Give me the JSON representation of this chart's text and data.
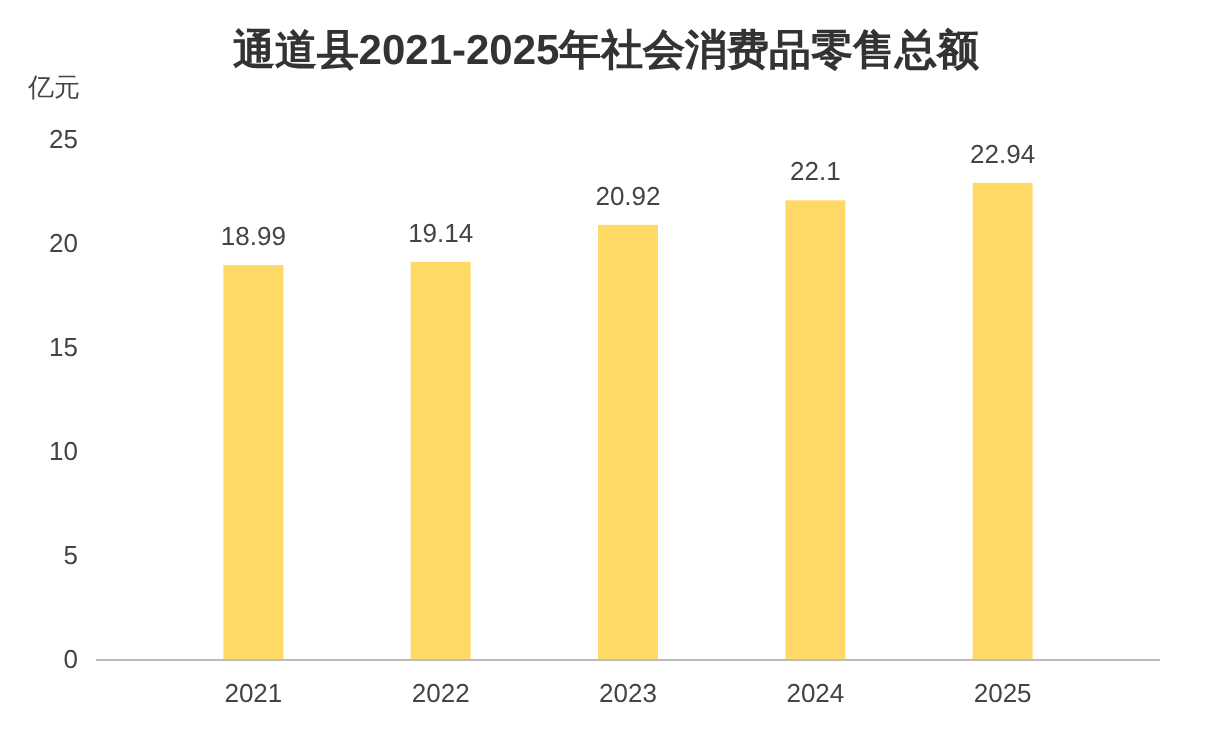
{
  "chart_data": {
    "type": "bar",
    "title": "通道县2021-2025年社会消费品零售总额",
    "ylabel": "亿元",
    "categories": [
      "2021",
      "2022",
      "2023",
      "2024",
      "2025"
    ],
    "values": [
      18.99,
      19.14,
      20.92,
      22.1,
      22.94
    ],
    "value_labels": [
      "18.99",
      "19.14",
      "20.92",
      "22.1",
      "22.94"
    ],
    "color": "#ffd966",
    "ylim": [
      0,
      25
    ],
    "yticks": [
      0,
      5,
      10,
      15,
      20,
      25
    ],
    "grid": false
  }
}
